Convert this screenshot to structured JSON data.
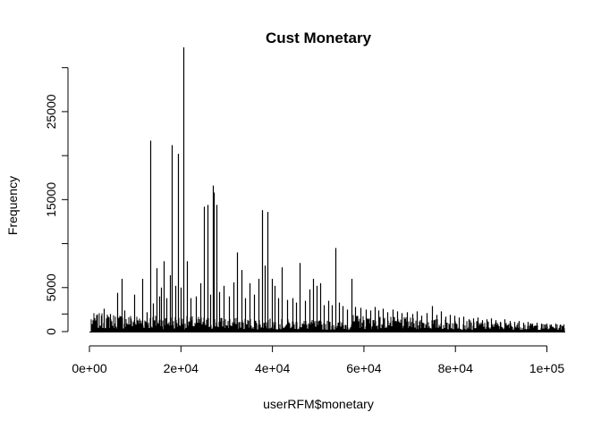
{
  "chart_data": {
    "type": "bar",
    "title": "Cust Monetary",
    "xlabel": "userRFM$monetary",
    "ylabel": "Frequency",
    "xlim": [
      0,
      104000
    ],
    "ylim": [
      0,
      32000
    ],
    "x_ticks": [
      {
        "value": 0,
        "label": "0e+00"
      },
      {
        "value": 20000,
        "label": "2e+04"
      },
      {
        "value": 40000,
        "label": "4e+04"
      },
      {
        "value": 60000,
        "label": "6e+04"
      },
      {
        "value": 80000,
        "label": "8e+04"
      },
      {
        "value": 100000,
        "label": "1e+05"
      }
    ],
    "y_ticks": [
      {
        "value": 0,
        "label": "0"
      },
      {
        "value": 5000,
        "label": "5000"
      },
      {
        "value": 15000,
        "label": "15000"
      },
      {
        "value": 25000,
        "label": "25000"
      }
    ],
    "y_minor_ticks": [
      2000,
      10000,
      20000,
      30000
    ],
    "spikes": [
      [
        1500,
        500
      ],
      [
        2500,
        1800
      ],
      [
        3200,
        2600
      ],
      [
        4500,
        2000
      ],
      [
        5500,
        900
      ],
      [
        6000,
        4400
      ],
      [
        7000,
        6000
      ],
      [
        7600,
        2400
      ],
      [
        9000,
        1500
      ],
      [
        9800,
        4200
      ],
      [
        10500,
        1200
      ],
      [
        11500,
        6000
      ],
      [
        12600,
        2200
      ],
      [
        13200,
        21700
      ],
      [
        13900,
        3200
      ],
      [
        14600,
        7200
      ],
      [
        15200,
        4000
      ],
      [
        15700,
        5000
      ],
      [
        16300,
        8000
      ],
      [
        16900,
        3800
      ],
      [
        17500,
        6400
      ],
      [
        18000,
        21200
      ],
      [
        18700,
        5200
      ],
      [
        19400,
        20200
      ],
      [
        20000,
        5000
      ],
      [
        20600,
        32300
      ],
      [
        21400,
        8000
      ],
      [
        22000,
        3800
      ],
      [
        23200,
        4000
      ],
      [
        24200,
        5500
      ],
      [
        25000,
        14200
      ],
      [
        25800,
        14400
      ],
      [
        26400,
        4200
      ],
      [
        26900,
        16600
      ],
      [
        27200,
        15800
      ],
      [
        27800,
        14400
      ],
      [
        28400,
        4500
      ],
      [
        29300,
        5200
      ],
      [
        30500,
        4000
      ],
      [
        31500,
        5600
      ],
      [
        32300,
        9000
      ],
      [
        33200,
        7000
      ],
      [
        34000,
        3800
      ],
      [
        35000,
        5500
      ],
      [
        36000,
        4200
      ],
      [
        37000,
        6000
      ],
      [
        37700,
        13800
      ],
      [
        38300,
        7500
      ],
      [
        38900,
        13600
      ],
      [
        39800,
        6000
      ],
      [
        40500,
        5200
      ],
      [
        41200,
        3800
      ],
      [
        42000,
        7300
      ],
      [
        43200,
        3600
      ],
      [
        44400,
        3800
      ],
      [
        45200,
        3300
      ],
      [
        46000,
        7800
      ],
      [
        47200,
        3500
      ],
      [
        48100,
        4800
      ],
      [
        48800,
        6000
      ],
      [
        49600,
        5200
      ],
      [
        50500,
        5500
      ],
      [
        51300,
        3000
      ],
      [
        52200,
        3500
      ],
      [
        53000,
        3000
      ],
      [
        53800,
        9500
      ],
      [
        54600,
        3300
      ],
      [
        55400,
        2900
      ],
      [
        56300,
        2500
      ],
      [
        57200,
        6000
      ],
      [
        58100,
        2800
      ],
      [
        59200,
        2700
      ],
      [
        60500,
        2500
      ],
      [
        61400,
        2400
      ],
      [
        62300,
        2800
      ],
      [
        63200,
        2400
      ],
      [
        64200,
        2600
      ],
      [
        65100,
        2200
      ],
      [
        66200,
        2500
      ],
      [
        67300,
        2300
      ],
      [
        68300,
        2100
      ],
      [
        69400,
        2200
      ],
      [
        70500,
        2000
      ],
      [
        71500,
        2300
      ],
      [
        72600,
        1800
      ],
      [
        73700,
        2100
      ],
      [
        74800,
        2900
      ],
      [
        75800,
        1900
      ],
      [
        76800,
        2300
      ],
      [
        77900,
        1700
      ],
      [
        78800,
        1900
      ],
      [
        79800,
        1800
      ],
      [
        80800,
        1600
      ],
      [
        81800,
        1700
      ],
      [
        82800,
        1400
      ],
      [
        83800,
        1500
      ],
      [
        84800,
        1600
      ],
      [
        85800,
        1300
      ],
      [
        86800,
        1400
      ],
      [
        87800,
        1500
      ],
      [
        88800,
        1300
      ],
      [
        89800,
        1100
      ],
      [
        90800,
        1400
      ],
      [
        91800,
        1200
      ],
      [
        92800,
        1100
      ],
      [
        93800,
        1200
      ],
      [
        94800,
        1000
      ],
      [
        95800,
        1100
      ],
      [
        96800,
        900
      ],
      [
        97800,
        1000
      ],
      [
        98800,
        900
      ],
      [
        99800,
        900
      ],
      [
        100800,
        800
      ],
      [
        101800,
        900
      ],
      [
        102800,
        800
      ],
      [
        103600,
        800
      ]
    ]
  }
}
